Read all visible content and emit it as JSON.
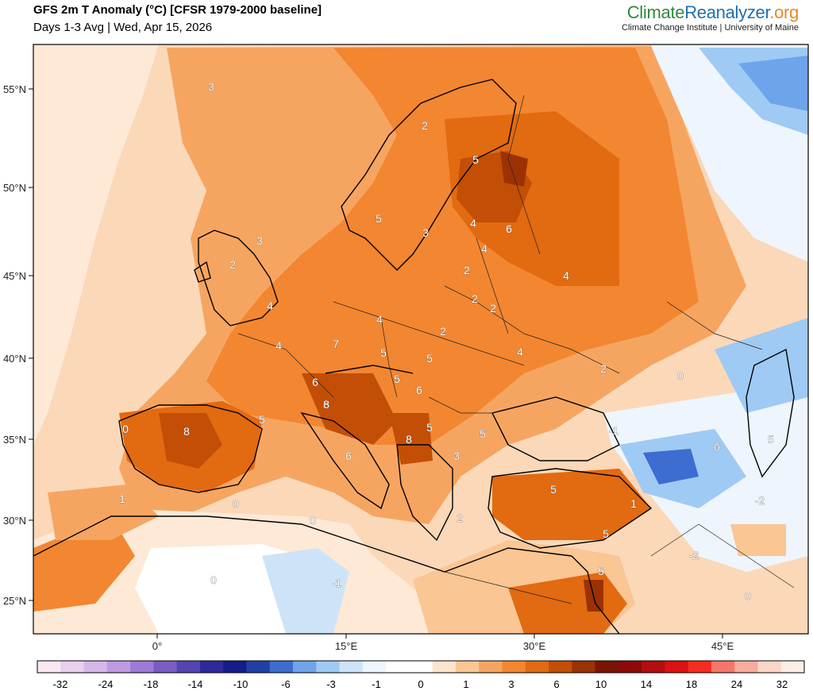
{
  "header": {
    "title": "GFS 2m T Anomaly (°C) [CFSR 1979-2000 baseline]",
    "subtitle": "Days 1-3 Avg | Wed, Apr 15, 2026"
  },
  "brand": {
    "logo_part1": "Climate",
    "logo_part2": "Reanalyzer",
    "logo_part3": ".org",
    "tagline": "Climate Change Institute | University of Maine",
    "colors": {
      "climate": "#2f8a3c",
      "reanalyzer": "#1f6fae",
      "org": "#e08a2a"
    }
  },
  "map": {
    "lat_labels": [
      "55°N",
      "50°N",
      "45°N",
      "40°N",
      "35°N",
      "30°N",
      "25°N"
    ],
    "lon_labels": [
      "0°",
      "15°E",
      "30°E",
      "45°E"
    ],
    "contour_labels": [
      "3",
      "2",
      "5",
      "3",
      "2",
      "4",
      "4",
      "6",
      "4",
      "4",
      "5",
      "3",
      "4",
      "7",
      "4",
      "2",
      "2",
      "2",
      "4",
      "5",
      "5",
      "5",
      "6",
      "6",
      "8",
      "6",
      "8",
      "5",
      "8",
      "5",
      "3",
      "6",
      "5",
      "2",
      "2",
      "0",
      "0",
      "1",
      "0",
      "5",
      "1",
      "2",
      "5",
      "5",
      "0",
      "-1",
      "0",
      "5",
      "-2",
      "-2",
      "0",
      "0",
      "-1"
    ]
  },
  "colorbar": {
    "labels": [
      "-32",
      "-24",
      "-18",
      "-14",
      "-10",
      "-6",
      "-3",
      "-1",
      "0",
      "1",
      "3",
      "6",
      "10",
      "14",
      "18",
      "24",
      "32"
    ],
    "colors": [
      "#fbe7f1",
      "#e9d0ee",
      "#d7b6ea",
      "#c198e2",
      "#a07ad8",
      "#7b5cc4",
      "#5544b4",
      "#2e2a9e",
      "#161c8c",
      "#2040a8",
      "#3d6dd0",
      "#6ea4ea",
      "#9fcaf4",
      "#cde4f8",
      "#eef5fc",
      "#ffffff",
      "#ffffff",
      "#fde5cc",
      "#f9c694",
      "#f6a561",
      "#f38630",
      "#e26a10",
      "#c34e06",
      "#9c3103",
      "#7a1504",
      "#8e0a0a",
      "#b50d0d",
      "#dd1111",
      "#f72b1f",
      "#f7766a",
      "#f9ab9c",
      "#fbd6c8",
      "#fdeee6"
    ]
  }
}
